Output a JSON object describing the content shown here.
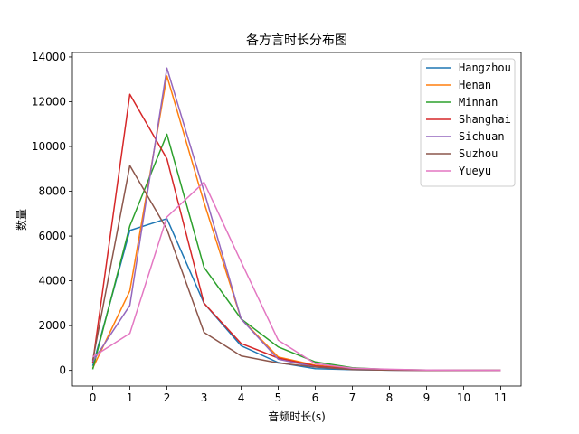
{
  "chart_data": {
    "type": "line",
    "title": "各方言时长分布图",
    "xlabel": "音频时长(s)",
    "ylabel": "数量",
    "x": [
      0,
      1,
      2,
      3,
      4,
      5,
      6,
      7,
      8,
      9,
      10,
      11
    ],
    "xlim": [
      -0.55,
      11.55
    ],
    "ylim": [
      -700,
      14200
    ],
    "xticks": [
      "0",
      "1",
      "2",
      "3",
      "4",
      "5",
      "6",
      "7",
      "8",
      "9",
      "10",
      "11"
    ],
    "yticks": [
      0,
      2000,
      4000,
      6000,
      8000,
      10000,
      12000,
      14000
    ],
    "ytick_labels": [
      "0",
      "2000",
      "4000",
      "6000",
      "8000",
      "10000",
      "12000",
      "14000"
    ],
    "grid": false,
    "legend_position": "top-right",
    "series": [
      {
        "name": "Hangzhou",
        "color": "#1f77b4",
        "values": [
          200,
          6250,
          6780,
          3000,
          1100,
          350,
          80,
          30,
          10,
          5,
          2,
          1
        ]
      },
      {
        "name": "Henan",
        "color": "#ff7f0e",
        "values": [
          100,
          3550,
          13150,
          7500,
          2300,
          600,
          230,
          80,
          30,
          10,
          5,
          2
        ]
      },
      {
        "name": "Minnan",
        "color": "#2ca02c",
        "values": [
          50,
          6450,
          10550,
          4600,
          2300,
          1050,
          380,
          120,
          40,
          15,
          5,
          2
        ]
      },
      {
        "name": "Shanghai",
        "color": "#d62728",
        "values": [
          350,
          12330,
          9450,
          3000,
          1200,
          550,
          200,
          60,
          20,
          8,
          3,
          1
        ]
      },
      {
        "name": "Sichuan",
        "color": "#9467bd",
        "values": [
          400,
          2900,
          13500,
          8000,
          2300,
          500,
          150,
          50,
          15,
          5,
          2,
          1
        ]
      },
      {
        "name": "Suzhou",
        "color": "#8c564b",
        "values": [
          450,
          9150,
          6300,
          1700,
          650,
          330,
          150,
          40,
          10,
          4,
          2,
          1
        ]
      },
      {
        "name": "Yueyu",
        "color": "#e377c2",
        "values": [
          600,
          1650,
          6850,
          8400,
          4850,
          1350,
          300,
          100,
          50,
          20,
          10,
          5
        ]
      }
    ]
  }
}
